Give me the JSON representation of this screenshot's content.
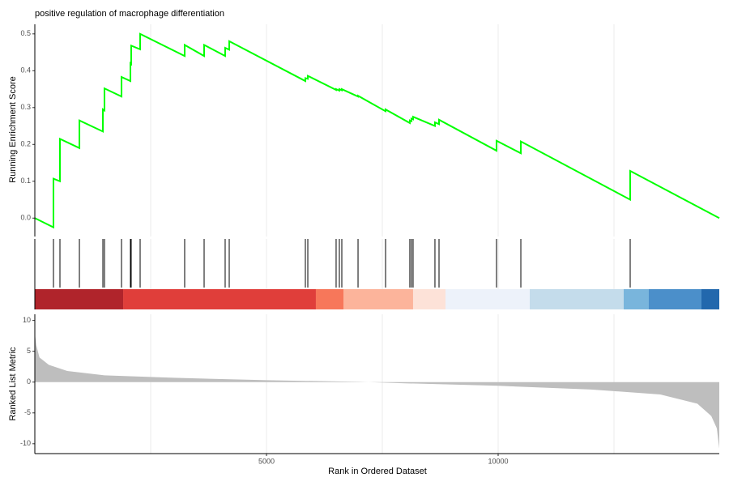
{
  "chart_data": [
    {
      "type": "line",
      "title": "positive regulation of macrophage differentiation",
      "ylabel": "Running Enrichment Score",
      "color": "#00ff00",
      "x": [
        0,
        402,
        402,
        542,
        542,
        962,
        962,
        1469,
        1469,
        1503,
        1503,
        1871,
        1871,
        2063,
        2063,
        2080,
        2080,
        2273,
        2273,
        3234,
        3234,
        3654,
        3654,
        4108,
        4108,
        4196,
        4196,
        5839,
        5839,
        5892,
        5892,
        6503,
        6503,
        6573,
        6573,
        6626,
        6626,
        6976,
        6976,
        7570,
        7570,
        8094,
        8094,
        8129,
        8129,
        8164,
        8164,
        8636,
        8636,
        8724,
        8724,
        9965,
        9965,
        10490,
        10490,
        12850,
        12850,
        14773
      ],
      "values": [
        0.0,
        -0.025,
        0.107,
        0.1,
        0.215,
        0.19,
        0.265,
        0.235,
        0.295,
        0.292,
        0.352,
        0.33,
        0.383,
        0.372,
        0.42,
        0.418,
        0.468,
        0.458,
        0.5,
        0.44,
        0.47,
        0.44,
        0.47,
        0.44,
        0.462,
        0.457,
        0.48,
        0.372,
        0.38,
        0.378,
        0.386,
        0.348,
        0.35,
        0.346,
        0.35,
        0.347,
        0.35,
        0.33,
        0.332,
        0.29,
        0.295,
        0.258,
        0.265,
        0.263,
        0.27,
        0.268,
        0.275,
        0.25,
        0.26,
        0.255,
        0.267,
        0.183,
        0.21,
        0.176,
        0.208,
        0.05,
        0.128,
        0.0
      ],
      "xlim": [
        0,
        14773
      ],
      "ylim": [
        -0.05,
        0.526
      ],
      "yticks": [
        {
          "value": 0,
          "label": "0.0"
        },
        0.1,
        0.2,
        0.3,
        0.4,
        0.5
      ],
      "xgrid": [
        2500,
        5000,
        7500,
        10000,
        12500
      ]
    },
    {
      "type": "rug",
      "xlim": [
        0,
        14773
      ],
      "hits": [
        402,
        542,
        962,
        1469,
        1503,
        1871,
        2063,
        2080,
        2273,
        3234,
        3654,
        4108,
        4196,
        5839,
        5892,
        6503,
        6573,
        6626,
        6976,
        7570,
        8094,
        8129,
        8164,
        8636,
        8724,
        9965,
        10490,
        12850
      ],
      "bands": [
        {
          "start": 0,
          "end": 1906,
          "color": "#b0242b"
        },
        {
          "start": 1906,
          "end": 6066,
          "color": "#e03e3a"
        },
        {
          "start": 6066,
          "end": 6661,
          "color": "#f7775a"
        },
        {
          "start": 6661,
          "end": 8164,
          "color": "#fcb49b"
        },
        {
          "start": 8164,
          "end": 8864,
          "color": "#fde2d8"
        },
        {
          "start": 8864,
          "end": 10682,
          "color": "#edf2fa"
        },
        {
          "start": 10682,
          "end": 12710,
          "color": "#c4dceb"
        },
        {
          "start": 12710,
          "end": 13252,
          "color": "#79b5dc"
        },
        {
          "start": 13252,
          "end": 14388,
          "color": "#4b8fca"
        },
        {
          "start": 14388,
          "end": 14773,
          "color": "#2268ad"
        }
      ],
      "xgrid": [
        2500,
        5000,
        7500,
        10000,
        12500
      ]
    },
    {
      "type": "area",
      "ylabel": "Ranked List Metric",
      "xlabel": "Rank in Ordered Dataset",
      "color": "#bebebe",
      "x": [
        0,
        30,
        100,
        300,
        700,
        1500,
        3000,
        5000,
        7000,
        8000,
        10000,
        12000,
        13500,
        14300,
        14600,
        14720,
        14773
      ],
      "values": [
        8,
        6,
        4,
        2.8,
        1.8,
        1.1,
        0.7,
        0.3,
        0.05,
        -0.2,
        -0.6,
        -1.2,
        -2.0,
        -3.5,
        -5.5,
        -7.5,
        -10.8
      ],
      "xlim": [
        0,
        14773
      ],
      "ylim": [
        -11.6,
        11
      ],
      "yticks": [
        -10,
        -5,
        0,
        5,
        10
      ],
      "xticks": [
        5000,
        10000
      ],
      "xgrid": [
        2500,
        5000,
        7500,
        10000,
        12500
      ]
    }
  ]
}
